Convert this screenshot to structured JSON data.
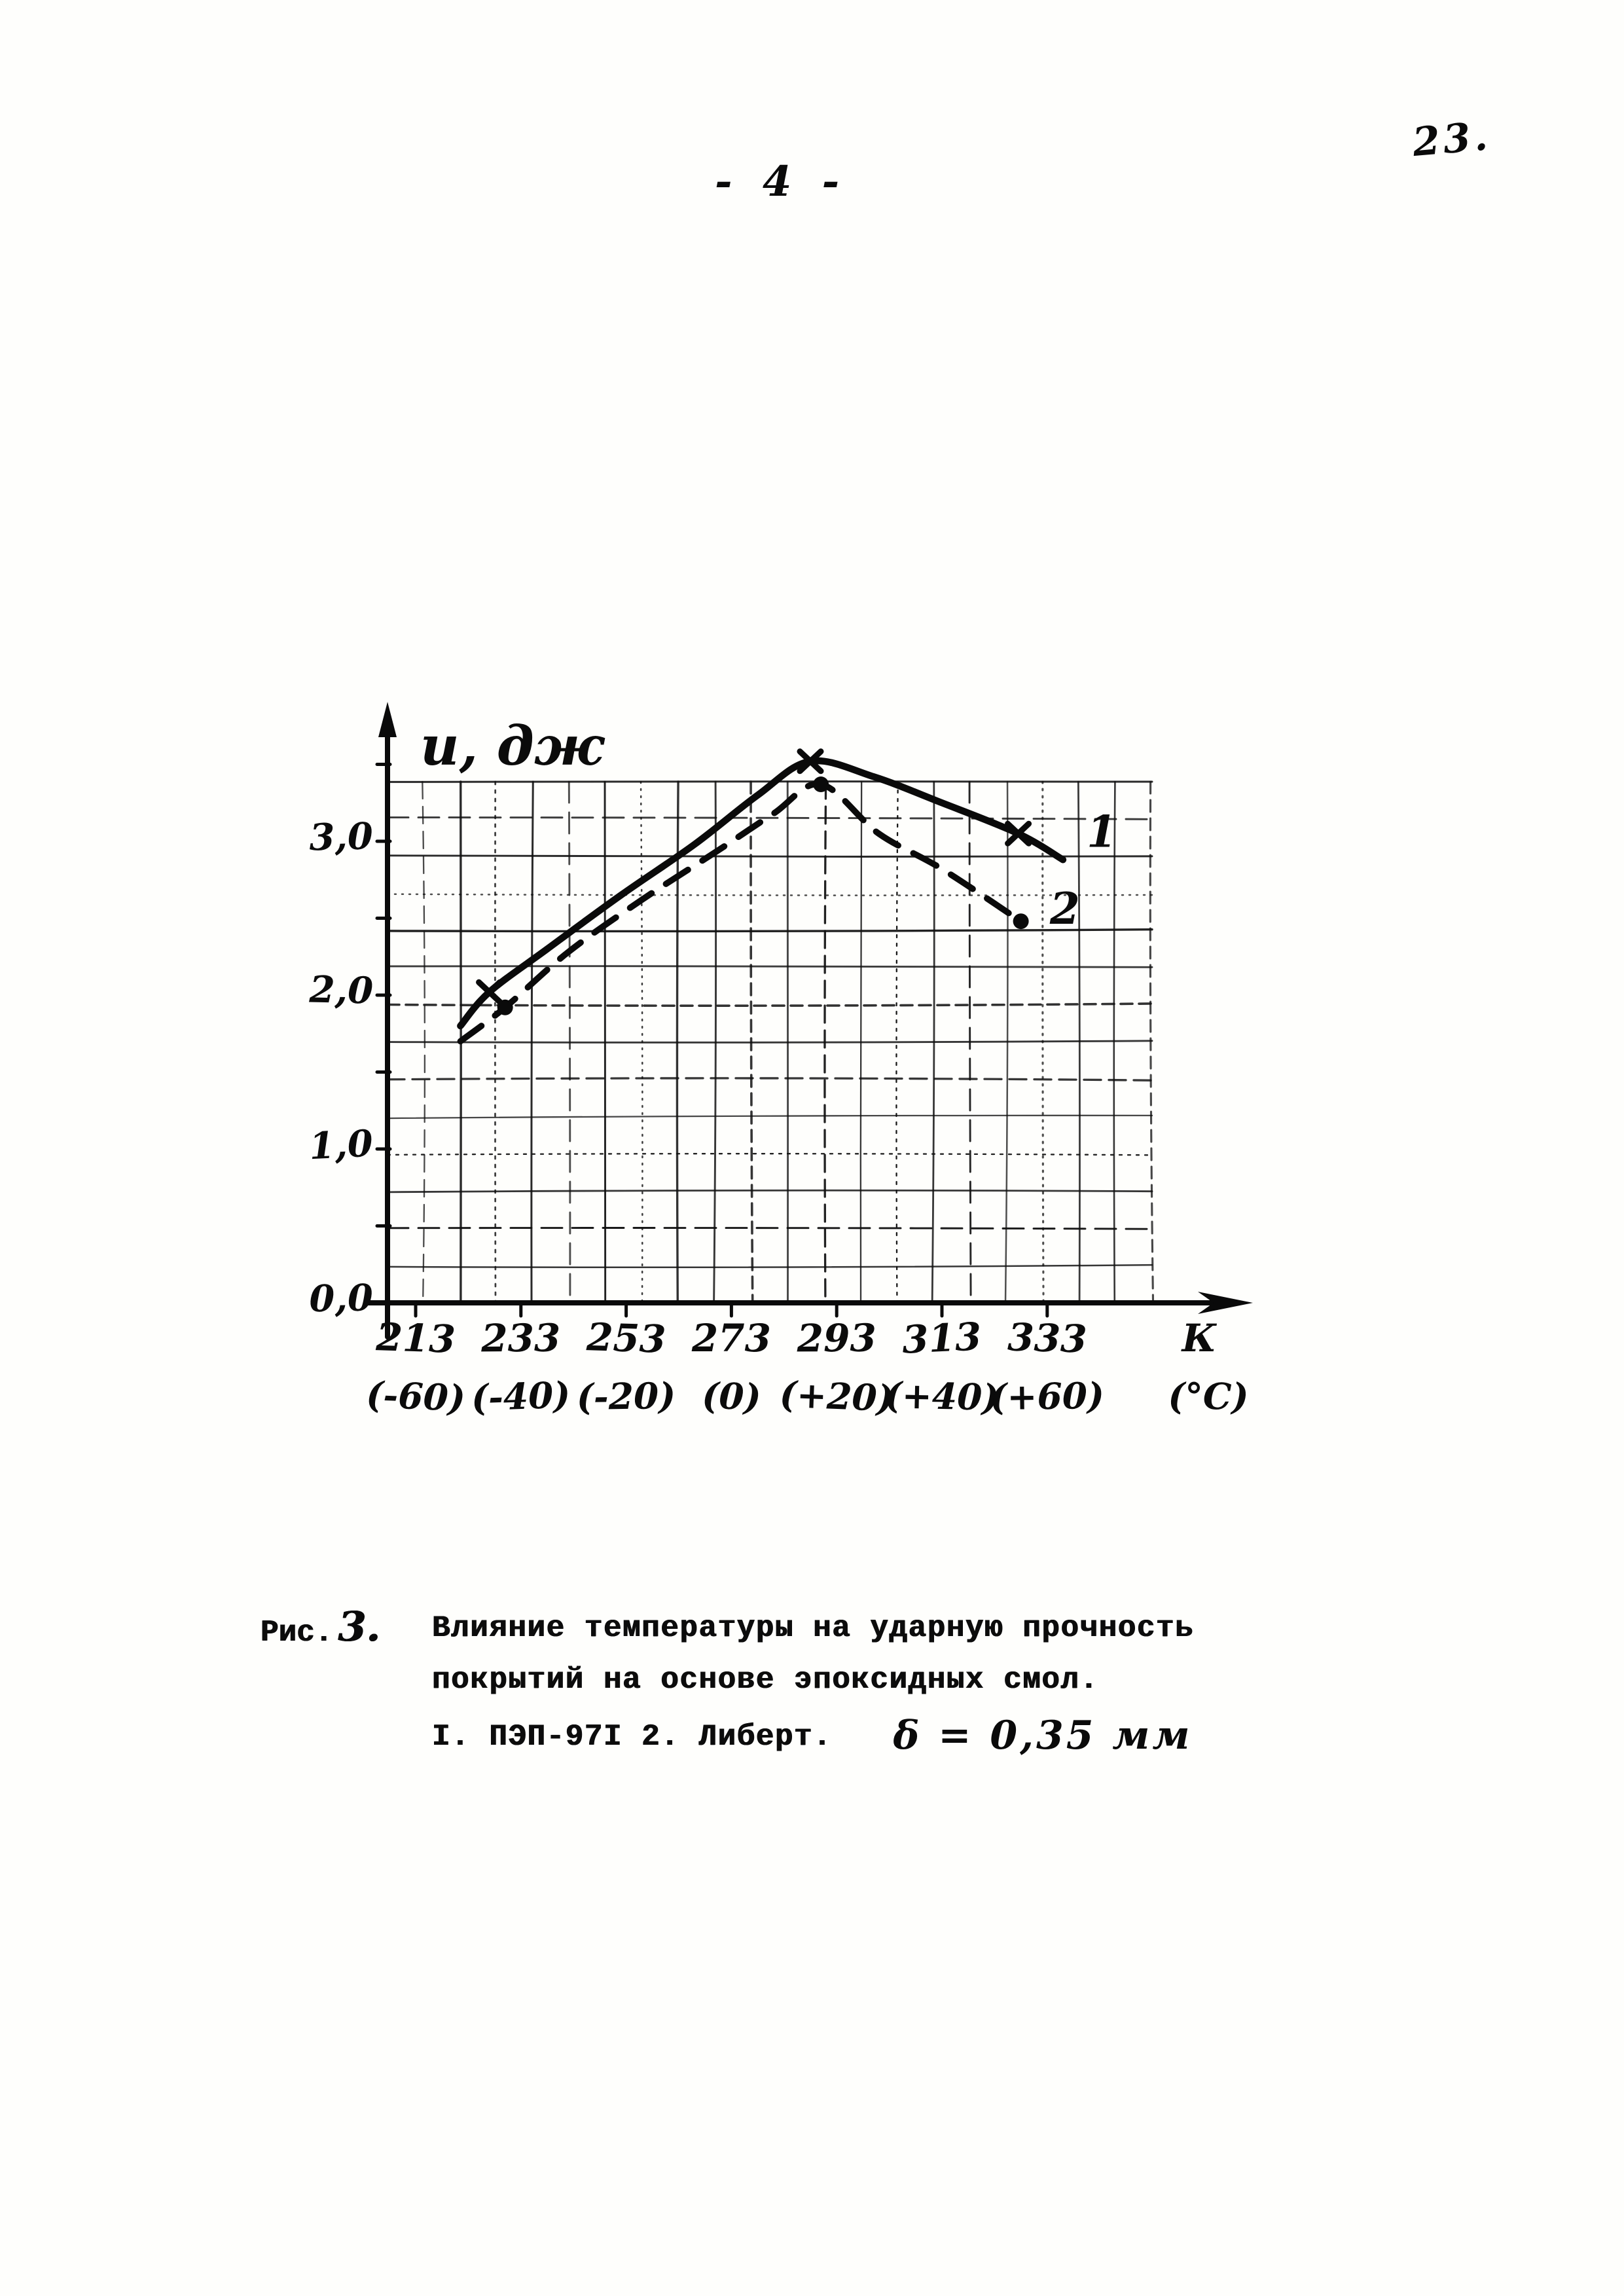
{
  "page": {
    "corner_number": "23.",
    "header_number": "- 4 -"
  },
  "caption": {
    "prefix": "Рис.",
    "number": "3.",
    "line1": "Влияние температуры на ударную прочность",
    "line2": "покрытий на основе эпоксидных смол.",
    "line3": "I. ПЭП-97I  2. Либерт.",
    "thickness_note": "δ = 0,35 мм"
  },
  "chart_data": {
    "type": "line",
    "title": "",
    "ylabel": "И, дж",
    "xlabel": "",
    "x_unit_row1": "К",
    "x_unit_row2": "(°C)",
    "x_ticks_K": [
      213,
      233,
      253,
      273,
      293,
      313,
      333
    ],
    "x_ticks_C": [
      "(-60)",
      "(-40)",
      "(-20)",
      "(0)",
      "(+20)",
      "(+40)",
      "(+60)"
    ],
    "y_ticks": [
      {
        "v": 0,
        "label": "0,0"
      },
      {
        "v": 1,
        "label": "1,0"
      },
      {
        "v": 2,
        "label": "2,0"
      },
      {
        "v": 3,
        "label": "3,0"
      }
    ],
    "xlim_K": [
      208,
      348
    ],
    "ylim": [
      0,
      3.6
    ],
    "grid": {
      "on": true,
      "cols": 21,
      "rows": 14
    },
    "legend_position": "labels-at-curve-ends",
    "series": [
      {
        "name": "1",
        "label": "1",
        "style": "solid",
        "marker": "x",
        "points": [
          [
            221.5,
            1.8
          ],
          [
            227,
            2.02
          ],
          [
            238,
            2.3
          ],
          [
            252,
            2.65
          ],
          [
            266,
            2.98
          ],
          [
            278,
            3.3
          ],
          [
            288,
            3.52
          ],
          [
            300,
            3.42
          ],
          [
            313,
            3.25
          ],
          [
            327.5,
            3.05
          ],
          [
            336,
            2.88
          ]
        ],
        "marker_points": [
          [
            227,
            2.02
          ],
          [
            288,
            3.52
          ],
          [
            327.5,
            3.05
          ]
        ],
        "label_at": [
          340.5,
          3.05
        ]
      },
      {
        "name": "2",
        "label": "2",
        "style": "dashed",
        "marker": "dot",
        "points": [
          [
            221.5,
            1.7
          ],
          [
            230,
            1.92
          ],
          [
            242,
            2.28
          ],
          [
            256,
            2.62
          ],
          [
            270,
            2.93
          ],
          [
            281,
            3.18
          ],
          [
            290,
            3.37
          ],
          [
            301,
            3.05
          ],
          [
            313,
            2.82
          ],
          [
            328,
            2.48
          ]
        ],
        "marker_points": [
          [
            230,
            1.92
          ],
          [
            290,
            3.37
          ],
          [
            328,
            2.48
          ]
        ],
        "label_at": [
          333.5,
          2.55
        ]
      }
    ]
  }
}
